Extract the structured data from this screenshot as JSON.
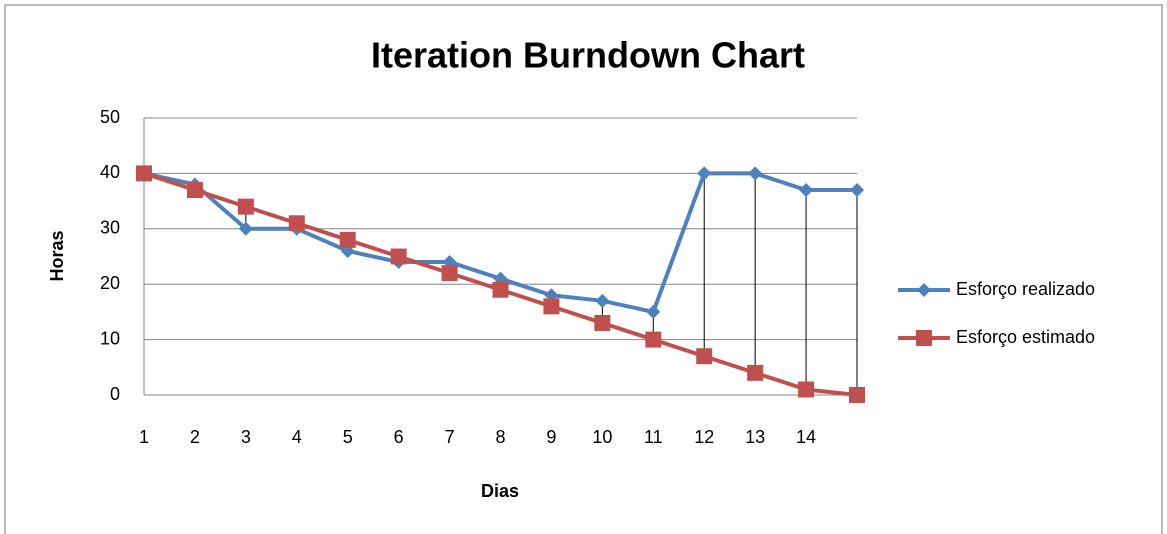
{
  "chart_data": {
    "type": "line",
    "title": "Iteration Burndown Chart",
    "x_label": "Dias",
    "y_label": "Horas",
    "categories": [
      "1",
      "2",
      "3",
      "4",
      "5",
      "6",
      "7",
      "8",
      "9",
      "10",
      "11",
      "12",
      "13",
      "14",
      null
    ],
    "series": [
      {
        "name": "Esforço realizado",
        "color": "#4f81bd",
        "marker": "diamond",
        "values": [
          40,
          38,
          30,
          30,
          26,
          24,
          24,
          21,
          18,
          17,
          15,
          40,
          40,
          37,
          37
        ]
      },
      {
        "name": "Esforço estimado",
        "color": "#c0504d",
        "marker": "square",
        "values": [
          40,
          37,
          34,
          31,
          28,
          25,
          22,
          19,
          16,
          13,
          10,
          7,
          4,
          1,
          0
        ]
      }
    ],
    "ylim": [
      0,
      50
    ],
    "yticks": [
      0,
      10,
      20,
      30,
      40,
      50
    ],
    "grid": true,
    "high_low_lines": true,
    "legend": "right"
  }
}
